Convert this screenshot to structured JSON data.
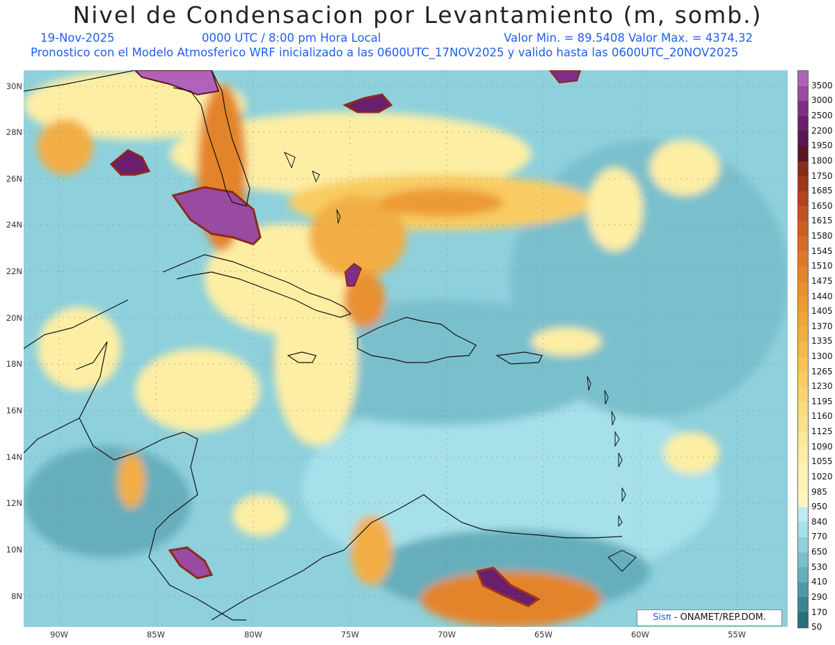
{
  "title": "Nivel de Condensacion por Levantamiento (m, somb.)",
  "header": {
    "date": "19-Nov-2025",
    "time": "0000 UTC / 8:00 pm Hora Local",
    "minmax": "Valor Min. = 89.5408  Valor Max. = 4374.32",
    "forecast": "Pronostico con el Modelo Atmosferico WRF inicializado a las 0600UTC_17NOV2025 y valido hasta las  0600UTC_20NOV2025"
  },
  "latitudes": [
    "30N",
    "28N",
    "26N",
    "24N",
    "22N",
    "20N",
    "18N",
    "16N",
    "14N",
    "12N",
    "10N",
    "8N"
  ],
  "longitudes": [
    "90W",
    "85W",
    "80W",
    "75W",
    "70W",
    "65W",
    "60W",
    "55W"
  ],
  "colorbar": {
    "labels": [
      "3500",
      "3000",
      "2500",
      "2200",
      "1950",
      "1800",
      "1750",
      "1685",
      "1650",
      "1615",
      "1580",
      "1545",
      "1510",
      "1475",
      "1440",
      "1405",
      "1370",
      "1335",
      "1300",
      "1265",
      "1230",
      "1195",
      "1160",
      "1125",
      "1090",
      "1055",
      "1020",
      "985",
      "950",
      "840",
      "770",
      "650",
      "530",
      "410",
      "290",
      "170",
      "50"
    ],
    "colors": [
      "#b062b8",
      "#9a4aa0",
      "#7e2e86",
      "#6a1e6e",
      "#591852",
      "#5a1424",
      "#8a2a18",
      "#a0361a",
      "#b2441c",
      "#c0521e",
      "#cc5e20",
      "#d66c24",
      "#de7828",
      "#e4842c",
      "#e99030",
      "#ec9a36",
      "#efa43c",
      "#f2ae44",
      "#f4b84c",
      "#f6c256",
      "#f8cc62",
      "#f9d46e",
      "#fadc7c",
      "#fbe28a",
      "#fce896",
      "#fdeea4",
      "#fef2b0",
      "#fff4b8",
      "#fdf6c0",
      "#bfeaf0",
      "#a6e0ea",
      "#8ed0dc",
      "#7ac0cc",
      "#66aebc",
      "#4e98a8",
      "#3a8494",
      "#26707e"
    ]
  },
  "credit": {
    "brand": "Sisπ",
    "text": " - ONAMET/REP.DOM."
  }
}
